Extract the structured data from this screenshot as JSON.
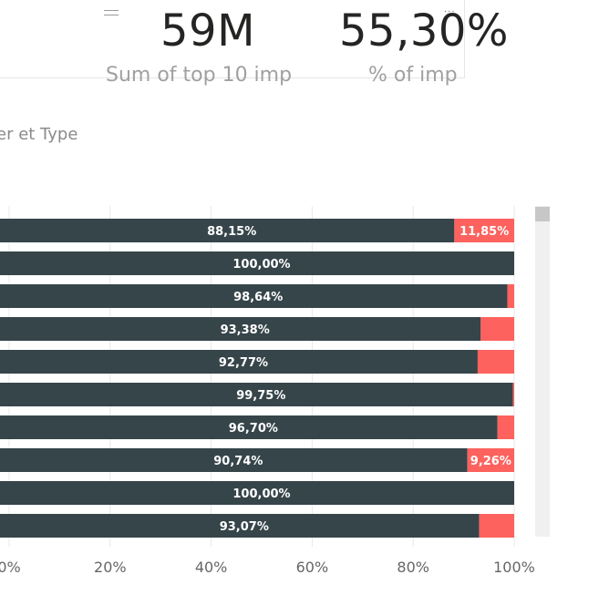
{
  "kpis": [
    {
      "value": "59M",
      "label": "Sum of top 10 imp"
    },
    {
      "value": "55,30%",
      "label": "% of imp"
    }
  ],
  "chart_title": "er et Type",
  "colors": {
    "series_main": "#36454a",
    "series_rest": "#fd625e",
    "gridline": "#e8e8e8",
    "tick_text": "#666666",
    "bar_label": "#ffffff"
  },
  "chart_data": {
    "type": "bar",
    "orientation": "horizontal",
    "stacking": "100%",
    "xlim": [
      0,
      100
    ],
    "x_ticks": [
      "0%",
      "20%",
      "40%",
      "60%",
      "80%",
      "100%"
    ],
    "grid": true,
    "series": [
      {
        "values": [
          88.15,
          100.0,
          98.64,
          93.38,
          92.77,
          99.75,
          96.7,
          90.74,
          100.0,
          93.07
        ],
        "labels": [
          "88,15%",
          "100,00%",
          "98,64%",
          "93,38%",
          "92,77%",
          "99,75%",
          "96,70%",
          "90,74%",
          "100,00%",
          "93,07%"
        ]
      },
      {
        "values": [
          11.85,
          0.0,
          1.36,
          6.62,
          7.23,
          0.25,
          3.3,
          9.26,
          0.0,
          6.93
        ],
        "labels": [
          "11,85%",
          "",
          "",
          "",
          "",
          "",
          "",
          "9,26%",
          "",
          ""
        ]
      }
    ]
  }
}
